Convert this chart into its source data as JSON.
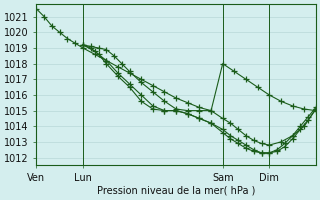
{
  "background_color": "#d4eeee",
  "grid_color": "#b8d8d8",
  "line_color": "#1a5c1a",
  "marker_color": "#1a5c1a",
  "xlabel": "Pression niveau de la mer( hPa )",
  "ylim": [
    1011.5,
    1021.8
  ],
  "yticks": [
    1012,
    1013,
    1014,
    1015,
    1016,
    1017,
    1018,
    1019,
    1020,
    1021
  ],
  "xtick_labels": [
    "Ven",
    "Lun",
    "Sam",
    "Dim"
  ],
  "xtick_positions": [
    0,
    12,
    48,
    60
  ],
  "vlines": [
    0,
    12,
    48,
    60
  ],
  "xlim": [
    0,
    72
  ],
  "series": [
    {
      "x": [
        0,
        2,
        4,
        6,
        8,
        10,
        12,
        15,
        18,
        21,
        24,
        27,
        30,
        33,
        36,
        39,
        42,
        45,
        48,
        51,
        54,
        57,
        60,
        63,
        66,
        69,
        72
      ],
      "y": [
        1021.5,
        1021.0,
        1020.4,
        1020.0,
        1019.6,
        1019.3,
        1019.0,
        1018.6,
        1018.2,
        1017.8,
        1017.4,
        1017.0,
        1016.6,
        1016.2,
        1015.8,
        1015.5,
        1015.2,
        1015.0,
        1018.0,
        1017.5,
        1017.0,
        1016.5,
        1016.0,
        1015.6,
        1015.3,
        1015.1,
        1015.0
      ]
    },
    {
      "x": [
        12,
        14,
        16,
        18,
        20,
        22,
        24,
        27,
        30,
        33,
        36,
        39,
        42,
        45,
        48,
        50,
        52,
        54,
        56,
        58,
        60,
        63,
        66,
        69,
        72
      ],
      "y": [
        1019.2,
        1019.1,
        1019.0,
        1018.9,
        1018.5,
        1018.0,
        1017.5,
        1016.8,
        1016.2,
        1015.6,
        1015.1,
        1015.0,
        1015.0,
        1015.0,
        1014.5,
        1014.2,
        1013.8,
        1013.4,
        1013.1,
        1012.9,
        1012.8,
        1013.0,
        1013.4,
        1014.0,
        1015.1
      ]
    },
    {
      "x": [
        12,
        14,
        16,
        18,
        21,
        24,
        27,
        30,
        33,
        36,
        39,
        42,
        45,
        48,
        50,
        52,
        54,
        56,
        58,
        60,
        62,
        64,
        66,
        68,
        70,
        72
      ],
      "y": [
        1019.2,
        1019.0,
        1018.6,
        1018.0,
        1017.2,
        1016.5,
        1015.6,
        1015.1,
        1015.0,
        1015.0,
        1014.8,
        1014.5,
        1014.2,
        1013.8,
        1013.4,
        1013.1,
        1012.8,
        1012.5,
        1012.3,
        1012.3,
        1012.4,
        1012.7,
        1013.2,
        1013.8,
        1014.4,
        1015.1
      ]
    },
    {
      "x": [
        12,
        15,
        18,
        21,
        24,
        27,
        30,
        33,
        36,
        39,
        42,
        45,
        48,
        50,
        52,
        54,
        56,
        58,
        60,
        62,
        64,
        66,
        68,
        70,
        72
      ],
      "y": [
        1019.2,
        1018.8,
        1018.2,
        1017.4,
        1016.7,
        1016.0,
        1015.3,
        1015.0,
        1015.0,
        1014.8,
        1014.5,
        1014.2,
        1013.6,
        1013.2,
        1012.9,
        1012.6,
        1012.4,
        1012.3,
        1012.3,
        1012.5,
        1012.9,
        1013.4,
        1014.0,
        1014.6,
        1015.2
      ]
    }
  ]
}
